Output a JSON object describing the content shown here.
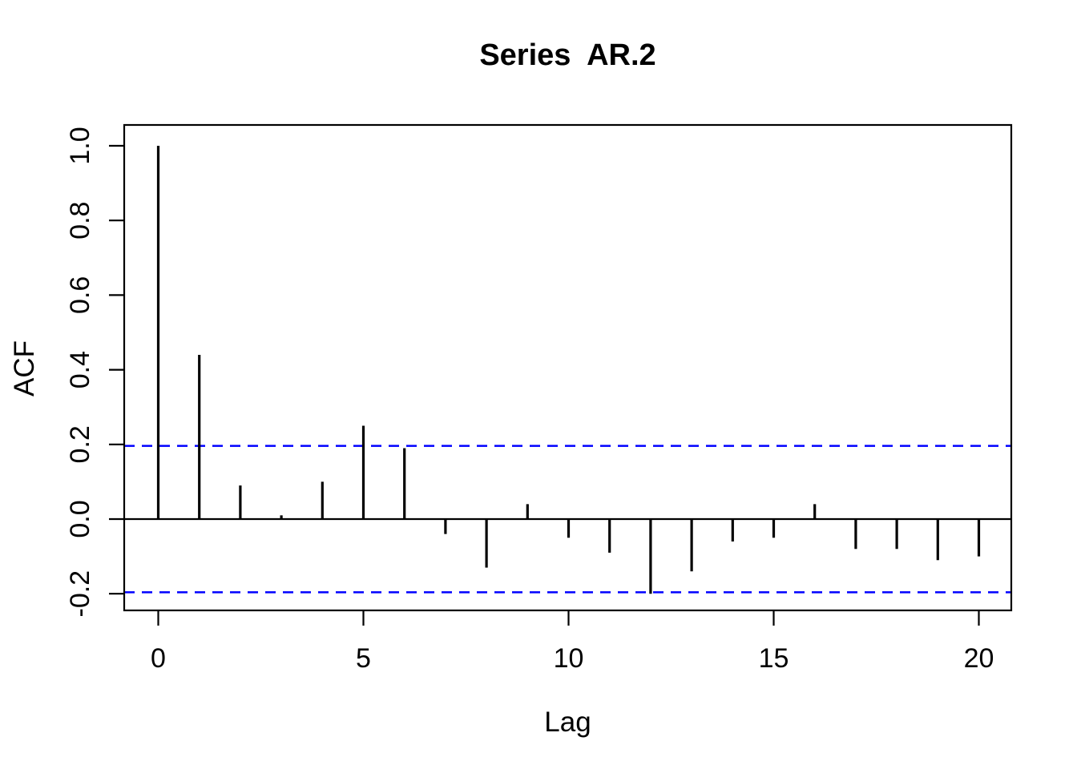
{
  "chart_data": {
    "type": "bar",
    "subtype": "acf-stem-plot",
    "title": "Series  AR.2",
    "xlabel": "Lag",
    "ylabel": "ACF",
    "x": [
      0,
      1,
      2,
      3,
      4,
      5,
      6,
      7,
      8,
      9,
      10,
      11,
      12,
      13,
      14,
      15,
      16,
      17,
      18,
      19,
      20
    ],
    "values": [
      1.0,
      0.44,
      0.09,
      0.01,
      0.1,
      0.25,
      0.19,
      -0.04,
      -0.13,
      0.04,
      -0.05,
      -0.09,
      -0.2,
      -0.14,
      -0.06,
      -0.05,
      0.04,
      -0.08,
      -0.08,
      -0.11,
      -0.1
    ],
    "confidence_upper": 0.196,
    "confidence_lower": -0.196,
    "xticks": [
      0,
      5,
      10,
      15,
      20
    ],
    "xtick_labels": [
      "0",
      "5",
      "10",
      "15",
      "20"
    ],
    "yticks": [
      -0.2,
      0.0,
      0.2,
      0.4,
      0.6,
      0.8,
      1.0
    ],
    "ytick_labels": [
      "-0.2",
      "0.0",
      "0.2",
      "0.4",
      "0.6",
      "0.8",
      "1.0"
    ],
    "xlim": [
      -0.83,
      20.83
    ],
    "ylim": [
      -0.248,
      1.048
    ],
    "grid": false,
    "legend": null,
    "colors": {
      "stem": "#000000",
      "axis": "#000000",
      "zero_line": "#000000",
      "ci_line": "#0000FF",
      "background": "#FFFFFF"
    }
  }
}
